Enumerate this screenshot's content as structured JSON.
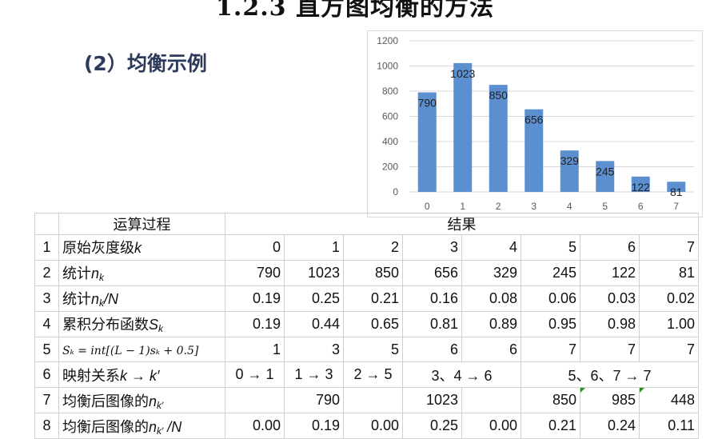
{
  "heading": "1.2.3 直方图均衡的方法",
  "subheading": "(2）均衡示例",
  "chart_data": {
    "type": "bar",
    "categories": [
      "0",
      "1",
      "2",
      "3",
      "4",
      "5",
      "6",
      "7"
    ],
    "values": [
      790,
      1023,
      850,
      656,
      329,
      245,
      122,
      81
    ],
    "yticks": [
      "0",
      "200",
      "400",
      "600",
      "800",
      "1000",
      "1200"
    ],
    "ylim": [
      0,
      1200
    ],
    "color": "#5b8fd0",
    "title": "",
    "xlabel": "",
    "ylabel": ""
  },
  "table": {
    "header": {
      "process": "运算过程",
      "result": "结果"
    },
    "row1": {
      "idx": "1",
      "label": "原始灰度级",
      "var": "k",
      "values": [
        "0",
        "1",
        "2",
        "3",
        "4",
        "5",
        "6",
        "7"
      ]
    },
    "row2": {
      "idx": "2",
      "label": "统计",
      "var": "n",
      "sub": "k",
      "values": [
        "790",
        "1023",
        "850",
        "656",
        "329",
        "245",
        "122",
        "81"
      ]
    },
    "row3": {
      "idx": "3",
      "label": "统计",
      "var": "n",
      "sub": "k",
      "suffix": "/N",
      "values": [
        "0.19",
        "0.25",
        "0.21",
        "0.16",
        "0.08",
        "0.06",
        "0.03",
        "0.02"
      ]
    },
    "row4": {
      "idx": "4",
      "label": "累积分布函数",
      "var": "S",
      "sub": "k",
      "values": [
        "0.19",
        "0.44",
        "0.65",
        "0.81",
        "0.89",
        "0.95",
        "0.98",
        "1.00"
      ]
    },
    "row5": {
      "idx": "5",
      "formula": "Sₖ = int[(L − 1)sₖ + 0.5]",
      "values": [
        "1",
        "3",
        "5",
        "6",
        "6",
        "7",
        "7",
        "7"
      ]
    },
    "row6": {
      "idx": "6",
      "label": "映射关系",
      "var": "k → k′",
      "m0": "0 → 1",
      "m1": "1 → 3",
      "m2": "2 → 5",
      "m34": "3、4 → 6",
      "m567": "5、6、7 → 7"
    },
    "row7": {
      "idx": "7",
      "label": "均衡后图像的",
      "var": "n",
      "sub": "k′",
      "values": [
        "",
        "790",
        "",
        "1023",
        "",
        "850",
        "985",
        "448"
      ]
    },
    "row8": {
      "idx": "8",
      "label": "均衡后图像的",
      "var": "n",
      "sub": "k′",
      "suffix": " /N",
      "values": [
        "0.00",
        "0.19",
        "0.00",
        "0.25",
        "0.00",
        "0.21",
        "0.24",
        "0.11"
      ]
    }
  }
}
